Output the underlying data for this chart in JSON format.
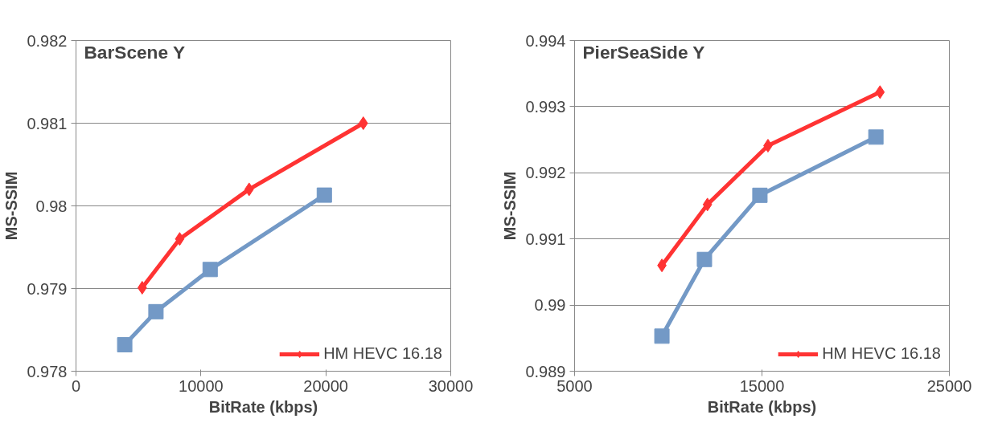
{
  "chart_data": [
    {
      "type": "line",
      "title": "BarScene Y",
      "xlabel": "BitRate (kbps)",
      "ylabel": "MS-SSIM",
      "xlim": [
        0,
        30000
      ],
      "xticks": [
        0,
        10000,
        20000,
        30000
      ],
      "ylim": [
        0.978,
        0.982
      ],
      "yticks": [
        0.978,
        0.979,
        0.98,
        0.981,
        0.982
      ],
      "grid": "y",
      "legend": "bottom right",
      "series": [
        {
          "name": "HM HEVC 16.18",
          "color": "#ff3333",
          "marker": "diamond",
          "x": [
            5300,
            8300,
            13860,
            23000
          ],
          "values": [
            0.97901,
            0.9796,
            0.9802,
            0.981
          ]
        },
        {
          "color": "#7399c6",
          "marker": "square",
          "x": [
            3900,
            6400,
            10740,
            19880
          ],
          "values": [
            0.97832,
            0.97872,
            0.97923,
            0.98013
          ]
        }
      ]
    },
    {
      "type": "line",
      "title": "PierSeaSide Y",
      "xlabel": "BitRate (kbps)",
      "ylabel": "MS-SSIM",
      "xlim": [
        5000,
        25000
      ],
      "xticks": [
        5000,
        15000,
        25000
      ],
      "ylim": [
        0.989,
        0.994
      ],
      "yticks": [
        0.989,
        0.99,
        0.991,
        0.992,
        0.993,
        0.994
      ],
      "grid": "y",
      "legend": "bottom right",
      "series": [
        {
          "name": "HM HEVC 16.18",
          "color": "#ff3333",
          "marker": "diamond",
          "x": [
            9660,
            12090,
            15320,
            21300
          ],
          "values": [
            0.9906,
            0.99152,
            0.99241,
            0.99322
          ]
        },
        {
          "color": "#7399c6",
          "marker": "square",
          "x": [
            9660,
            11930,
            14890,
            21080
          ],
          "values": [
            0.98953,
            0.99069,
            0.99166,
            0.99254
          ]
        }
      ]
    }
  ]
}
